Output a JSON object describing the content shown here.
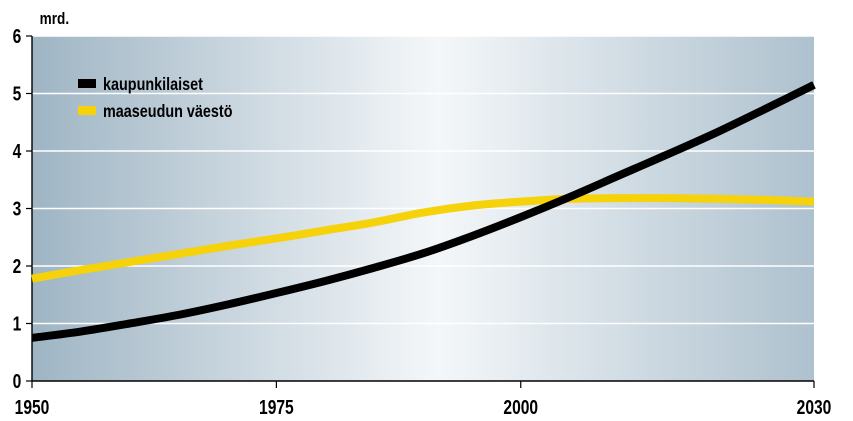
{
  "chart_data": {
    "type": "line",
    "ylabel": "mrd.",
    "xlabel": "",
    "title": "",
    "ylim": [
      0,
      6
    ],
    "xlim": [
      1950,
      2030
    ],
    "yticks": [
      0,
      1,
      2,
      3,
      4,
      5,
      6
    ],
    "xticks": [
      1950,
      1975,
      2000,
      2030
    ],
    "grid": "horizontal",
    "legend_position": "top-left",
    "series": [
      {
        "name": "kaupunkilaiset",
        "color": "#000000",
        "x": [
          1950,
          1955,
          1960,
          1965,
          1970,
          1975,
          1980,
          1985,
          1990,
          1995,
          2000,
          2005,
          2010,
          2015,
          2020,
          2025,
          2030
        ],
        "y": [
          0.75,
          0.86,
          1.0,
          1.15,
          1.33,
          1.53,
          1.74,
          1.97,
          2.22,
          2.52,
          2.85,
          3.2,
          3.57,
          3.94,
          4.32,
          4.73,
          5.15
        ]
      },
      {
        "name": "maaseudun väestö",
        "color": "#f5d20a",
        "x": [
          1950,
          1955,
          1960,
          1965,
          1970,
          1975,
          1980,
          1985,
          1990,
          1995,
          2000,
          2005,
          2010,
          2015,
          2020,
          2025,
          2030
        ],
        "y": [
          1.78,
          1.93,
          2.07,
          2.21,
          2.35,
          2.48,
          2.62,
          2.76,
          2.93,
          3.05,
          3.12,
          3.17,
          3.18,
          3.18,
          3.17,
          3.15,
          3.12
        ]
      }
    ]
  }
}
